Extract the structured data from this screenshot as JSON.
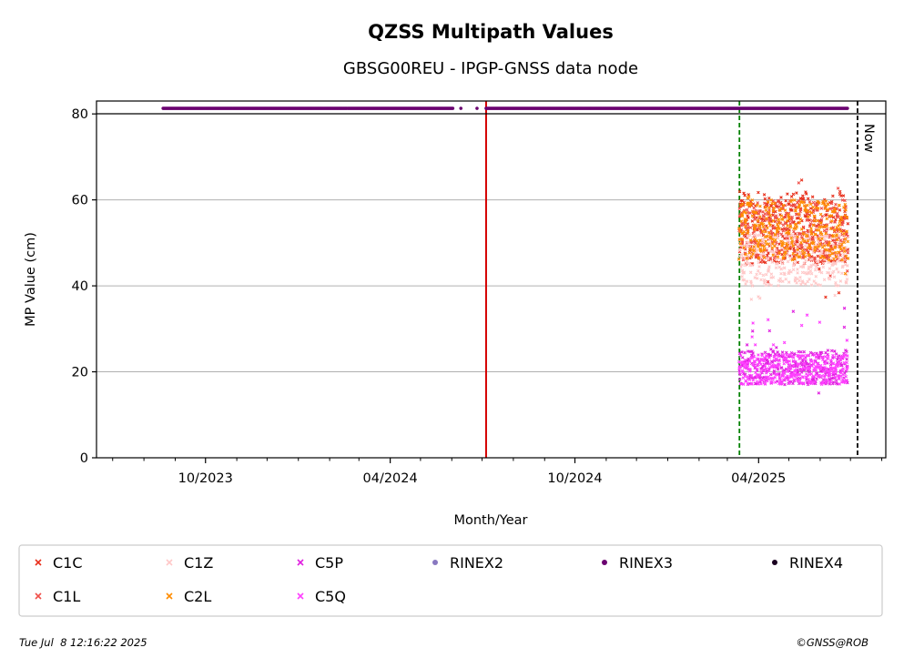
{
  "chart_data": {
    "type": "scatter",
    "title": "QZSS Multipath Values",
    "subtitle": "GBSG00REU - IPGP-GNSS data node",
    "xlabel": "Month/Year",
    "ylabel": "MP Value (cm)",
    "xlim": [
      "2023-06-15",
      "2025-08-05"
    ],
    "ylim": [
      0,
      83
    ],
    "y_ticks": [
      0,
      20,
      40,
      60,
      80
    ],
    "x_ticks": [
      {
        "date": "2023-10-01",
        "label": "10/2023"
      },
      {
        "date": "2024-04-01",
        "label": "04/2024"
      },
      {
        "date": "2024-10-01",
        "label": "10/2024"
      },
      {
        "date": "2025-04-01",
        "label": "04/2025"
      }
    ],
    "grid": "horizontal",
    "legend_placement": "below-plot",
    "vertical_lines": [
      {
        "date": "2024-07-05",
        "color": "#d40000",
        "style": "solid"
      },
      {
        "date": "2025-03-13",
        "color": "#008000",
        "style": "dashed"
      },
      {
        "date": "2025-07-08",
        "color": "#000000",
        "style": "dashed",
        "label": "Now"
      }
    ],
    "rinex_availability": {
      "value": 81.3,
      "series": "RINEX3",
      "segments": [
        [
          "2023-08-20",
          "2024-06-02"
        ],
        [
          "2024-07-05",
          "2025-06-28"
        ]
      ],
      "isolated_points": [
        "2024-06-10",
        "2024-06-26"
      ]
    },
    "series": [
      {
        "name": "C1C",
        "color": "#e8301c",
        "marker": "x",
        "date_range": [
          "2025-03-13",
          "2025-06-28"
        ],
        "typical_range": [
          45,
          62
        ],
        "extremes": [
          37,
          68
        ]
      },
      {
        "name": "C1L",
        "color": "#f0504a",
        "marker": "x",
        "date_range": [
          "2025-03-13",
          "2025-06-28"
        ],
        "typical_range": [
          46,
          60
        ],
        "extremes": [
          40,
          66
        ]
      },
      {
        "name": "C1Z",
        "color": "#ffc8c8",
        "marker": "x",
        "date_range": [
          "2025-03-13",
          "2025-06-28"
        ],
        "typical_range": [
          40,
          52
        ],
        "extremes": [
          36,
          54
        ]
      },
      {
        "name": "C2L",
        "color": "#ff8c00",
        "marker": "x",
        "date_range": [
          "2025-03-13",
          "2025-06-28"
        ],
        "typical_range": [
          46,
          60
        ],
        "extremes": [
          42,
          64
        ]
      },
      {
        "name": "C5P",
        "color": "#e020e0",
        "marker": "x",
        "date_range": [
          "2025-03-13",
          "2025-06-28"
        ],
        "typical_range": [
          17,
          25
        ],
        "extremes": [
          15,
          36
        ]
      },
      {
        "name": "C5Q",
        "color": "#ff40ff",
        "marker": "x",
        "date_range": [
          "2025-03-13",
          "2025-06-28"
        ],
        "typical_range": [
          17,
          24
        ],
        "extremes": [
          15,
          34
        ]
      }
    ],
    "legend": [
      {
        "label": "C1C",
        "color": "#e8301c",
        "marker": "x"
      },
      {
        "label": "C1Z",
        "color": "#ffc8c8",
        "marker": "x"
      },
      {
        "label": "C5P",
        "color": "#e020e0",
        "marker": "x"
      },
      {
        "label": "RINEX2",
        "color": "#8878c0",
        "marker": "dot"
      },
      {
        "label": "RINEX3",
        "color": "#6a0070",
        "marker": "dot"
      },
      {
        "label": "RINEX4",
        "color": "#1a0020",
        "marker": "dot"
      },
      {
        "label": "C1L",
        "color": "#f0504a",
        "marker": "x"
      },
      {
        "label": "C2L",
        "color": "#ff8c00",
        "marker": "x"
      },
      {
        "label": "C5Q",
        "color": "#ff40ff",
        "marker": "x"
      }
    ]
  },
  "footer": {
    "timestamp": "Tue Jul  8 12:16:22 2025",
    "credit": "©GNSS@ROB"
  }
}
